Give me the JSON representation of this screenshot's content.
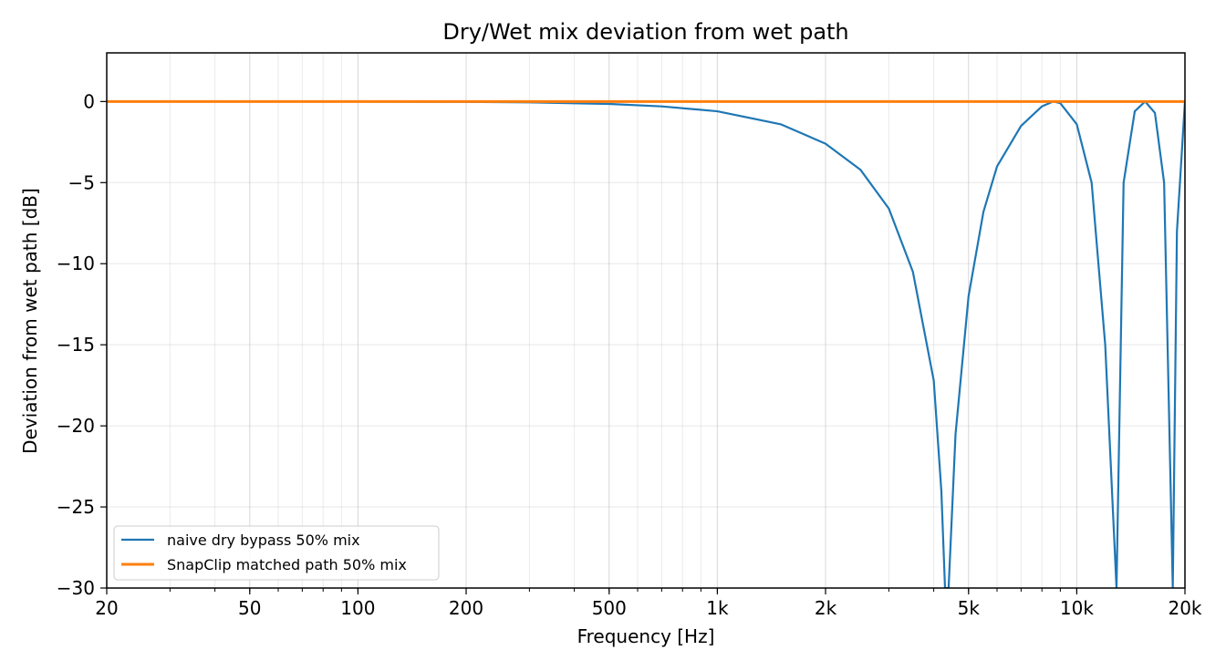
{
  "chart_data": {
    "type": "line",
    "title": "Dry/Wet mix deviation from wet path",
    "xlabel": "Frequency [Hz]",
    "ylabel": "Deviation from wet path [dB]",
    "x_scale": "log",
    "xlim": [
      20,
      20000
    ],
    "ylim": [
      -30,
      3
    ],
    "x_ticks": [
      20,
      50,
      100,
      200,
      500,
      1000,
      2000,
      5000,
      10000,
      20000
    ],
    "x_tick_labels": [
      "20",
      "50",
      "100",
      "200",
      "500",
      "1k",
      "2k",
      "5k",
      "10k",
      "20k"
    ],
    "y_ticks": [
      0,
      -5,
      -10,
      -15,
      -20,
      -25,
      -30
    ],
    "y_tick_labels": [
      "0",
      "−5",
      "−10",
      "−15",
      "−20",
      "−25",
      "−30"
    ],
    "grid": true,
    "legend_position": "lower-left",
    "series": [
      {
        "name": "naive dry bypass 50% mix",
        "color": "#1f77b4",
        "x": [
          20,
          100,
          200,
          300,
          500,
          700,
          1000,
          1500,
          2000,
          2500,
          3000,
          3500,
          4000,
          4200,
          4300,
          4400,
          4600,
          5000,
          5500,
          6000,
          7000,
          8000,
          8600,
          9000,
          10000,
          11000,
          12000,
          12900,
          13500,
          14500,
          15500,
          16500,
          17500,
          18500,
          19000,
          20000
        ],
        "y": [
          0,
          0,
          -0.02,
          -0.05,
          -0.15,
          -0.3,
          -0.6,
          -1.4,
          -2.6,
          -4.2,
          -6.6,
          -10.5,
          -17.2,
          -24.0,
          -30,
          -30,
          -20.5,
          -12.0,
          -6.8,
          -4.0,
          -1.5,
          -0.3,
          0,
          -0.1,
          -1.4,
          -5.0,
          -15.0,
          -30,
          -5.0,
          -0.6,
          0,
          -0.7,
          -5.0,
          -30,
          -8.0,
          0
        ]
      },
      {
        "name": "SnapClip matched path 50% mix",
        "color": "#ff7f0e",
        "x": [
          20,
          20000
        ],
        "y": [
          0,
          0
        ]
      }
    ]
  }
}
